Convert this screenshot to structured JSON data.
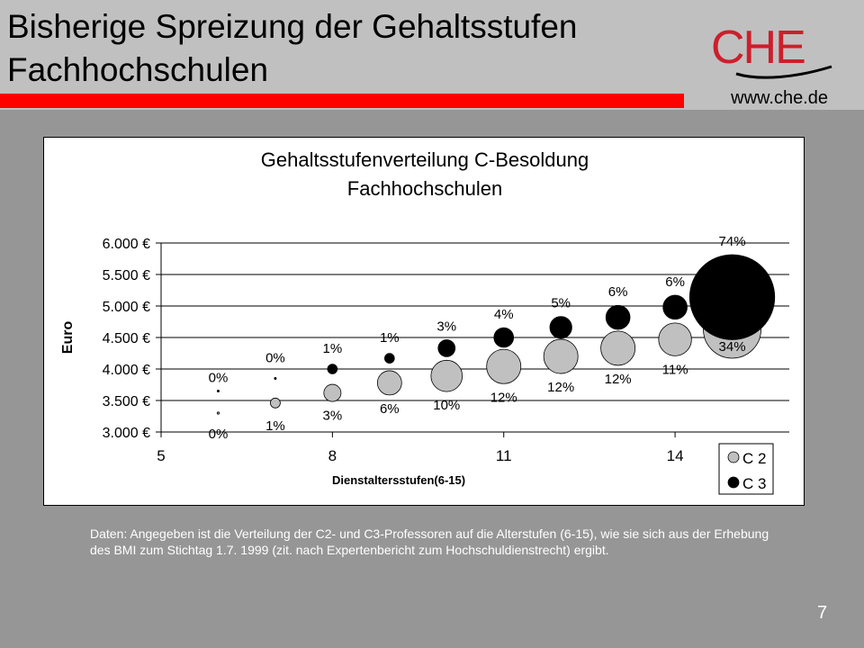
{
  "slide": {
    "title_line1": "Bisherige Spreizung der Gehaltsstufen",
    "title_line2": "Fachhochschulen",
    "website": "www.che.de",
    "logo_text": "CHE",
    "caption": "Daten: Angegeben ist die Verteilung der C2- und C3-Professoren auf die Alterstufen (6-15), wie sie sich aus der Erhebung des BMI zum Stichtag 1.7. 1999 (zit. nach  Expertenbericht zum Hochschuldienstrecht) ergibt.",
    "page_number": "7",
    "colors": {
      "header": "#c0c0c0",
      "redbar": "#ff0000",
      "background": "#969696",
      "logo_red": "#cc1f2b"
    }
  },
  "chart_data": {
    "type": "bubble",
    "title_line1": "Gehaltsstufenverteilung C-Besoldung",
    "title_line2": "Fachhochschulen",
    "xlabel": "Dienstaltersstufen(6-15)",
    "ylabel": "Euro",
    "xlim": [
      5,
      16
    ],
    "ylim": [
      3000,
      6000
    ],
    "x_ticks": [
      "5",
      "8",
      "11",
      "14"
    ],
    "y_ticks": [
      "6.000 €",
      "5.500 €",
      "5.000 €",
      "4.500 €",
      "4.000 €",
      "3.500 €",
      "3.000 €"
    ],
    "y_tick_values": [
      6000,
      5500,
      5000,
      4500,
      4000,
      3500,
      3000
    ],
    "x_tick_values": [
      5,
      8,
      11,
      14
    ],
    "grid": "horizontal",
    "legend_position": "bottom-right",
    "series": [
      {
        "name": "C 2",
        "color": "#c0c0c0",
        "x": [
          6,
          7,
          8,
          9,
          10,
          11,
          12,
          13,
          14,
          15
        ],
        "y": [
          3300,
          3460,
          3620,
          3780,
          3890,
          4040,
          4200,
          4330,
          4470,
          4630
        ],
        "size_percent": [
          0,
          1,
          3,
          6,
          10,
          12,
          12,
          12,
          11,
          34
        ],
        "labels": [
          "0%",
          "1%",
          "3%",
          "6%",
          "10%",
          "12%",
          "12%",
          "12%",
          "11%",
          "34%"
        ]
      },
      {
        "name": "C 3",
        "color": "#000000",
        "x": [
          6,
          7,
          8,
          9,
          10,
          11,
          12,
          13,
          14,
          15
        ],
        "y": [
          3650,
          3850,
          4000,
          4170,
          4330,
          4500,
          4660,
          4820,
          4980,
          5140
        ],
        "size_percent": [
          0,
          0,
          1,
          1,
          3,
          4,
          5,
          6,
          6,
          74
        ],
        "labels": [
          "0%",
          "0%",
          "1%",
          "1%",
          "3%",
          "4%",
          "5%",
          "6%",
          "6%",
          "74%"
        ]
      }
    ]
  }
}
